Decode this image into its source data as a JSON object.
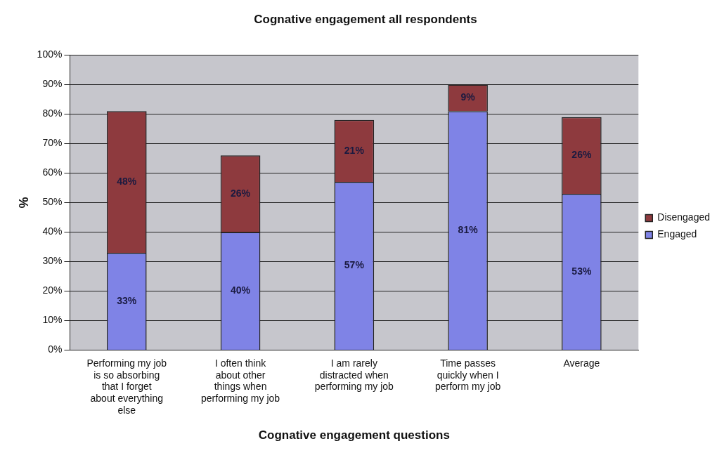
{
  "chart_data": {
    "type": "bar",
    "title": "Cognative engagement all respondents",
    "xlabel": "Cognative engagement questions",
    "ylabel": "%",
    "categories": [
      "Performing my job is so absorbing that I forget about everything else",
      "I often think about other things when performing my job",
      "I am rarely distracted when performing my job",
      "Time passes quickly when I perform my job",
      "Average"
    ],
    "stacked": true,
    "legend": "right",
    "grid": "y",
    "series": [
      {
        "name": "Engaged",
        "color": "#7f83e6",
        "values": [
          33,
          40,
          57,
          81,
          53
        ],
        "value_labels": [
          "33%",
          "40%",
          "57%",
          "81%",
          "53%"
        ]
      },
      {
        "name": "Disengaged",
        "color": "#8e3a3e",
        "values": [
          48,
          26,
          21,
          9,
          26
        ],
        "value_labels": [
          "48%",
          "26%",
          "21%",
          "9%",
          "26%"
        ]
      }
    ],
    "ylim": [
      0,
      100
    ],
    "yticks": [
      {
        "value": 0,
        "label": "0%"
      },
      {
        "value": 10,
        "label": "10%"
      },
      {
        "value": 20,
        "label": "20%"
      },
      {
        "value": 30,
        "label": "30%"
      },
      {
        "value": 40,
        "label": "40%"
      },
      {
        "value": 50,
        "label": "50%"
      },
      {
        "value": 60,
        "label": "60%"
      },
      {
        "value": 70,
        "label": "70%"
      },
      {
        "value": 80,
        "label": "80%"
      },
      {
        "value": 90,
        "label": "90%"
      },
      {
        "value": 100,
        "label": "100%"
      }
    ]
  }
}
